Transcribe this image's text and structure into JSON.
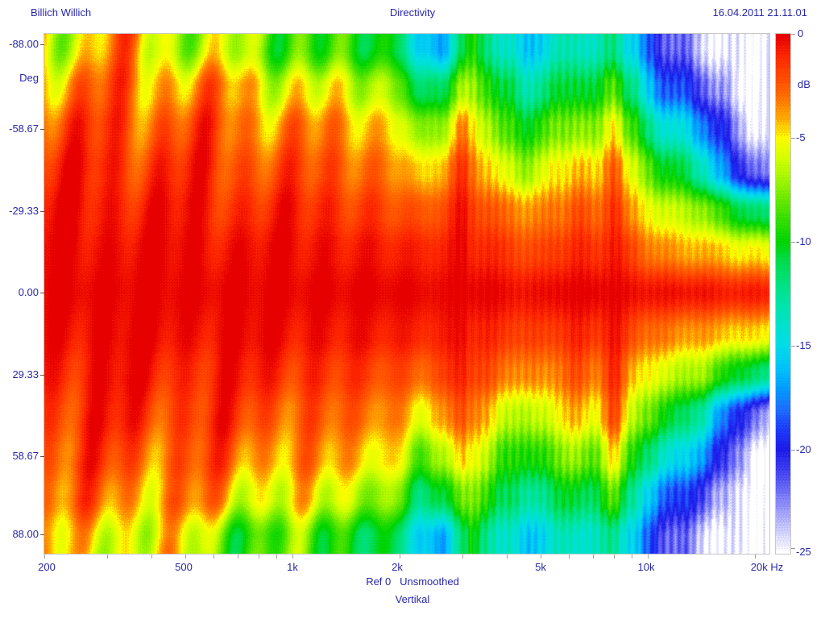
{
  "header": {
    "left": "Billich Willich",
    "center": "Directivity",
    "right": "16.04.2011 21.11.01"
  },
  "footer": {
    "ref_line": "Ref 0   Unsmoothed",
    "plane_label": "Vertikal"
  },
  "axes": {
    "y_label": "Deg",
    "y_ticks": [
      "-88.00",
      "-58.67",
      "-29.33",
      "0.00",
      "29.33",
      "58.67",
      "88.00"
    ],
    "x_ticks": [
      "200",
      "500",
      "1k",
      "2k",
      "5k",
      "10k",
      "20k Hz"
    ],
    "colorbar_label": "dB",
    "colorbar_ticks": [
      "0",
      "-5",
      "-10",
      "-15",
      "-20",
      "-25"
    ]
  },
  "colors": {
    "text": "#2828aa",
    "plot_border": "#c8c8c8"
  },
  "chart_data": {
    "type": "heatmap",
    "title": "Directivity",
    "subtitle": "Vertikal",
    "x_axis": {
      "label": "Hz",
      "scale": "log",
      "min": 200,
      "max": 22000,
      "tick_values": [
        200,
        500,
        1000,
        2000,
        5000,
        10000,
        20000
      ],
      "minor_ticks": [
        200,
        300,
        400,
        500,
        600,
        700,
        800,
        900,
        1000,
        2000,
        3000,
        4000,
        5000,
        6000,
        7000,
        8000,
        9000,
        10000,
        20000
      ]
    },
    "y_axis": {
      "label": "Deg",
      "min": -93,
      "max": 93,
      "tick_values": [
        -88.0,
        -58.67,
        -29.33,
        0.0,
        29.33,
        58.67,
        88.0
      ]
    },
    "z_axis": {
      "label": "dB",
      "min": -25,
      "max": 0,
      "tick_values": [
        0,
        -5,
        -10,
        -15,
        -20,
        -25
      ]
    },
    "freqs_hz": [
      200,
      250,
      315,
      400,
      500,
      630,
      800,
      1000,
      1250,
      1600,
      2000,
      2300,
      2600,
      3000,
      3200,
      3450,
      4000,
      4500,
      5000,
      5600,
      6300,
      7100,
      8000,
      9000,
      10000,
      11000,
      12500,
      14000,
      16000,
      18000,
      20000,
      22000
    ],
    "angles_deg": [
      -88,
      -73,
      -59,
      -44,
      -29,
      -15,
      0,
      15,
      29,
      44,
      59,
      73,
      88
    ],
    "level_db": [
      [
        -4.5,
        -5.5,
        -4,
        -4.5,
        -6,
        -7,
        -8,
        -8,
        -9,
        -10,
        -11,
        -16,
        -17,
        -11,
        -10,
        -11.5,
        -14,
        -16,
        -15,
        -14,
        -13,
        -14,
        -12,
        -15,
        -19,
        -21,
        -22,
        -24,
        -25,
        -25,
        -25,
        -25
      ],
      [
        -3,
        -3.5,
        -2.8,
        -3,
        -3.5,
        -4,
        -4.5,
        -5,
        -5.5,
        -6.5,
        -7.5,
        -12,
        -11,
        -7,
        -7.5,
        -8.5,
        -11,
        -13,
        -12,
        -11,
        -10,
        -11,
        -8,
        -12,
        -16,
        -18,
        -19,
        -21,
        -23,
        -25,
        -25,
        -25
      ],
      [
        -1.8,
        -2.2,
        -1.8,
        -2,
        -2.2,
        -2.6,
        -3,
        -3,
        -3.5,
        -4.2,
        -5,
        -8,
        -7,
        -3.5,
        -5,
        -6,
        -9,
        -10,
        -9,
        -8,
        -7,
        -8,
        -4.5,
        -9,
        -12,
        -14,
        -15,
        -17,
        -20,
        -23,
        -25,
        -25
      ],
      [
        -1,
        -1.2,
        -1,
        -1.2,
        -1.4,
        -1.6,
        -1.8,
        -2,
        -2.4,
        -2.8,
        -3.4,
        -5,
        -4,
        -1.5,
        -3,
        -4,
        -6,
        -7,
        -6,
        -5,
        -4,
        -5,
        -2,
        -6,
        -8,
        -10,
        -11,
        -13,
        -17,
        -20,
        -22,
        -23
      ],
      [
        -0.5,
        -0.6,
        -0.5,
        -0.6,
        -0.8,
        -0.9,
        -1,
        -1,
        -1.3,
        -1.6,
        -2,
        -2.5,
        -2,
        -0.5,
        -1.5,
        -2,
        -3,
        -3.5,
        -3.5,
        -3,
        -2,
        -3,
        -1,
        -4,
        -5,
        -6,
        -6.5,
        -7,
        -9,
        -10.5,
        -11.5,
        -12
      ],
      [
        -0.2,
        -0.2,
        -0.2,
        -0.2,
        -0.3,
        -0.3,
        -0.3,
        -0.4,
        -0.5,
        -0.6,
        -0.8,
        -1,
        -0.9,
        -0.2,
        -0.9,
        -1,
        -1.5,
        -2,
        -2,
        -1.5,
        -1,
        -1.5,
        -0.5,
        -2,
        -3,
        -3.5,
        -4,
        -4,
        -4.5,
        -5,
        -5,
        -5.5
      ],
      [
        0,
        0,
        0,
        0,
        0,
        0,
        0,
        0,
        0,
        0,
        0,
        -0.2,
        -0.2,
        0,
        0,
        0,
        -0.3,
        -0.5,
        -0.4,
        0,
        0,
        0,
        0,
        -0.4,
        -0.4,
        -0.5,
        -0.5,
        -0.5,
        -0.8,
        -0.8,
        -0.8,
        -1
      ],
      [
        -0.2,
        -0.2,
        -0.2,
        -0.2,
        -0.3,
        -0.3,
        -0.3,
        -0.4,
        -0.5,
        -0.6,
        -0.8,
        -1,
        -0.9,
        -0.2,
        -0.9,
        -1,
        -1.4,
        -1.8,
        -1.8,
        -1.4,
        -1,
        -1.4,
        -0.5,
        -2,
        -2.8,
        -3.2,
        -3.6,
        -3.8,
        -4.2,
        -4.6,
        -4.8,
        -5
      ],
      [
        -0.6,
        -0.7,
        -0.6,
        -0.7,
        -0.9,
        -1,
        -1,
        -1.1,
        -1.4,
        -1.7,
        -2.1,
        -2.6,
        -2.1,
        -0.6,
        -1.6,
        -2.1,
        -3,
        -3.6,
        -3.5,
        -3,
        -2.2,
        -3,
        -1.2,
        -4,
        -5,
        -6,
        -6.5,
        -7,
        -9,
        -10.5,
        -11.5,
        -12
      ],
      [
        -1.2,
        -1.4,
        -1.1,
        -1.3,
        -1.5,
        -1.7,
        -2,
        -2.2,
        -2.5,
        -3,
        -3.6,
        -5.2,
        -4.2,
        -1.8,
        -3.2,
        -4.2,
        -6,
        -7,
        -6,
        -5,
        -4.2,
        -5,
        -2.2,
        -6,
        -8,
        -10,
        -11,
        -13,
        -17,
        -20,
        -22,
        -23
      ],
      [
        -2,
        -2.4,
        -2,
        -2.2,
        -2.5,
        -2.8,
        -3.2,
        -3.2,
        -3.8,
        -4.5,
        -5.2,
        -8.5,
        -7.2,
        -4,
        -5.5,
        -6.5,
        -9,
        -10,
        -9,
        -8,
        -7.2,
        -8,
        -5,
        -9,
        -12,
        -14,
        -15,
        -17,
        -20,
        -23,
        -25,
        -25
      ],
      [
        -3.2,
        -3.6,
        -3,
        -3.2,
        -3.8,
        -4.2,
        -4.8,
        -5.2,
        -5.8,
        -6.8,
        -7.8,
        -12,
        -11,
        -7.5,
        -8,
        -9,
        -11,
        -13,
        -12,
        -11,
        -10.5,
        -11,
        -8.5,
        -12,
        -16,
        -18,
        -19,
        -21,
        -23,
        -25,
        -25,
        -25
      ],
      [
        -5,
        -6,
        -4.5,
        -5,
        -6.5,
        -7.5,
        -8.5,
        -8.5,
        -9.5,
        -10.5,
        -11.5,
        -16,
        -17,
        -11.5,
        -10.5,
        -12,
        -14,
        -16,
        -15,
        -14,
        -13.5,
        -14,
        -12.5,
        -15,
        -19,
        -21,
        -22,
        -24,
        -25,
        -25,
        -25,
        -25
      ]
    ],
    "ripple": {
      "comment": "comb-filter ripple visible as wavy contours / vertical striations",
      "slow_cycles_per_decade": 3.1,
      "mid_cycles_per_decade": 8.2,
      "fast_cycles_per_decade": 46,
      "max_amp_db": 1.7
    },
    "palette_db_rgb": [
      [
        0,
        230,
        0,
        0
      ],
      [
        -1,
        252,
        36,
        0
      ],
      [
        -2,
        255,
        72,
        0
      ],
      [
        -3,
        255,
        110,
        0
      ],
      [
        -4,
        255,
        165,
        0
      ],
      [
        -5,
        252,
        252,
        0
      ],
      [
        -6,
        212,
        255,
        0
      ],
      [
        -7,
        160,
        245,
        0
      ],
      [
        -8,
        104,
        232,
        0
      ],
      [
        -9,
        48,
        222,
        0
      ],
      [
        -10,
        0,
        212,
        0
      ],
      [
        -11,
        0,
        220,
        80
      ],
      [
        -12,
        0,
        226,
        128
      ],
      [
        -13,
        0,
        228,
        168
      ],
      [
        -14,
        0,
        226,
        204
      ],
      [
        -15,
        0,
        220,
        232
      ],
      [
        -16,
        0,
        196,
        248
      ],
      [
        -17,
        0,
        160,
        255
      ],
      [
        -18,
        28,
        112,
        255
      ],
      [
        -19,
        30,
        60,
        248
      ],
      [
        -20,
        28,
        28,
        232
      ],
      [
        -21,
        64,
        64,
        240
      ],
      [
        -22,
        108,
        108,
        246
      ],
      [
        -23,
        160,
        160,
        250
      ],
      [
        -24,
        208,
        208,
        252
      ],
      [
        -25,
        255,
        255,
        255
      ]
    ]
  }
}
